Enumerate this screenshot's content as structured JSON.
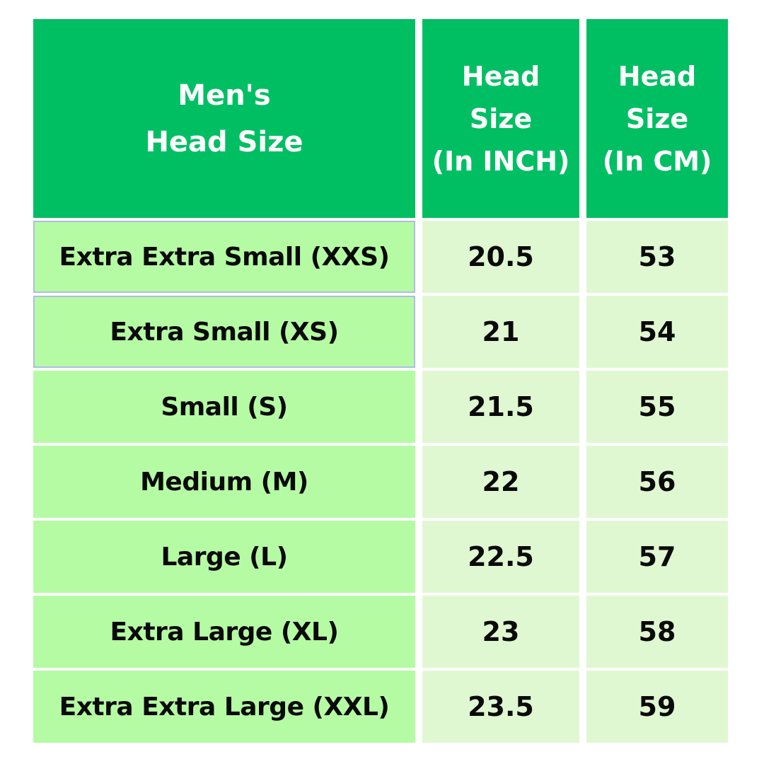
{
  "title": "Men's Head Size chart",
  "colors": {
    "header_green": "#00bf63",
    "label_green": "#b5fba4",
    "value_pale_green": "#e0f8d2",
    "selection_border": "#aebce8",
    "header_text": "#ffffff",
    "body_text": "#0a0a0a",
    "background": "#ffffff"
  },
  "table": {
    "header": {
      "col1_lines": [
        "Men's",
        "Head Size"
      ],
      "col2_lines": [
        "Head",
        "Size",
        "(In INCH)"
      ],
      "col3_lines": [
        "Head",
        "Size",
        "(In CM)"
      ]
    },
    "rows": [
      {
        "label": "Extra Extra Small (XXS)",
        "inch": "20.5",
        "cm": "53"
      },
      {
        "label": "Extra Small (XS)",
        "inch": "21",
        "cm": "54"
      },
      {
        "label": "Small (S)",
        "inch": "21.5",
        "cm": "55"
      },
      {
        "label": "Medium (M)",
        "inch": "22",
        "cm": "56"
      },
      {
        "label": "Large (L)",
        "inch": "22.5",
        "cm": "57"
      },
      {
        "label": "Extra Large (XL)",
        "inch": "23",
        "cm": "58"
      },
      {
        "label": "Extra Extra Large (XXL)",
        "inch": "23.5",
        "cm": "59"
      }
    ]
  },
  "chart_data": {
    "type": "table",
    "title": "Men's Head Size",
    "columns": [
      "Men's Head Size",
      "Head Size (In INCH)",
      "Head Size (In CM)"
    ],
    "rows": [
      [
        "Extra Extra Small (XXS)",
        20.5,
        53
      ],
      [
        "Extra Small (XS)",
        21,
        54
      ],
      [
        "Small (S)",
        21.5,
        55
      ],
      [
        "Medium (M)",
        22,
        56
      ],
      [
        "Large (L)",
        22.5,
        57
      ],
      [
        "Extra Large (XL)",
        23,
        58
      ],
      [
        "Extra Extra Large (XXL)",
        23.5,
        59
      ]
    ]
  }
}
